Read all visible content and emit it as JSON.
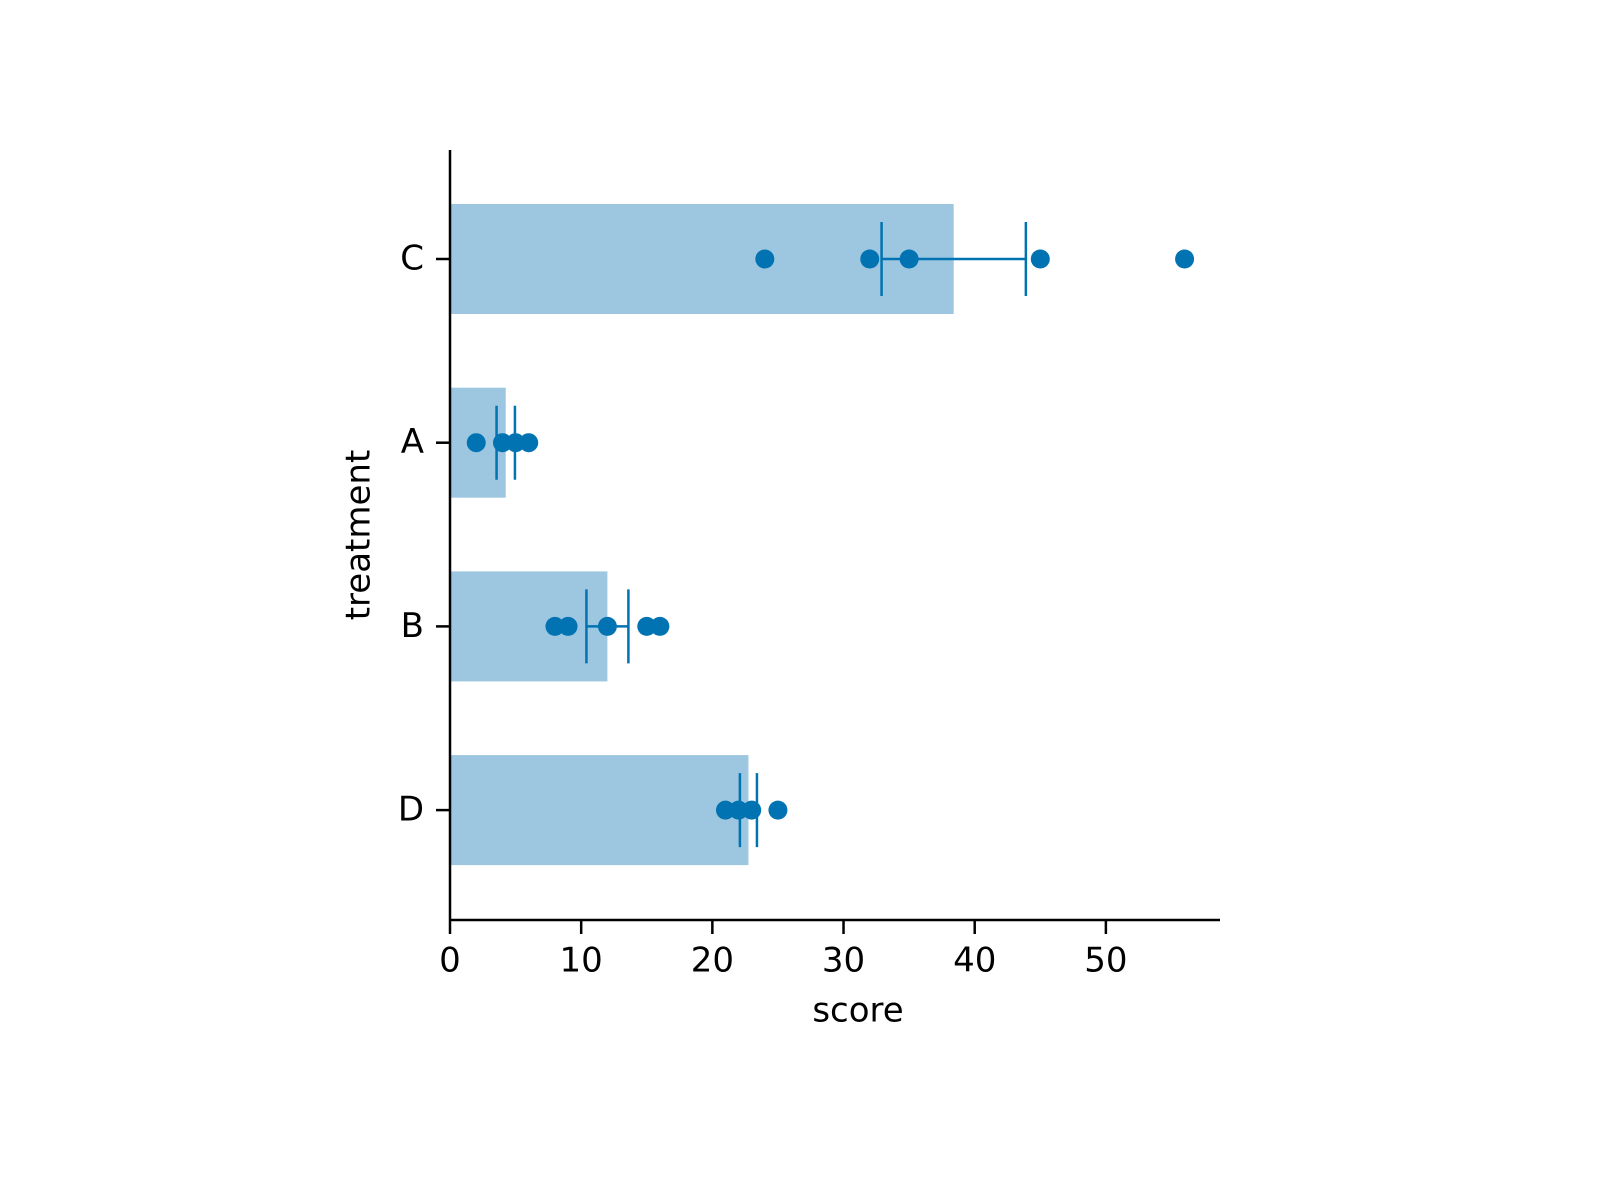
{
  "chart_data": {
    "type": "bar",
    "orientation": "horizontal",
    "xlabel": "score",
    "ylabel": "treatment",
    "categories": [
      "C",
      "A",
      "B",
      "D"
    ],
    "values": [
      38.4,
      4.25,
      12,
      22.75
    ],
    "errors": [
      5.5,
      0.7,
      1.6,
      0.65
    ],
    "points": [
      [
        24,
        32,
        35,
        45,
        56
      ],
      [
        2,
        4,
        5,
        6
      ],
      [
        8,
        9,
        12,
        15,
        16
      ],
      [
        21,
        22,
        23,
        25
      ]
    ],
    "bar_color": "#9dc7e0",
    "point_color": "#0173b2",
    "xlim": [
      0,
      58.7
    ],
    "xticks": [
      0,
      10,
      20,
      30,
      40,
      50
    ],
    "grid": false
  }
}
